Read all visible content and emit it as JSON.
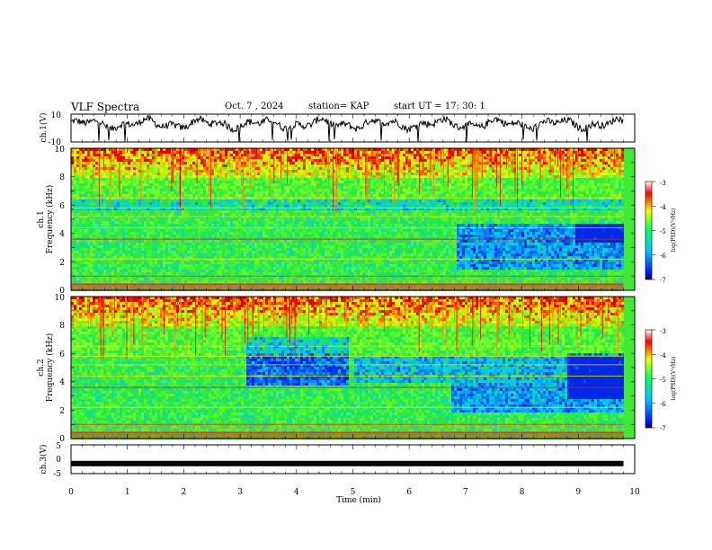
{
  "header": {
    "title": "VLF Spectra",
    "date": "Oct. 7 , 2024",
    "station": "station= KAP",
    "start": "start  UT =   17: 30: 1"
  },
  "chart_data": [
    {
      "type": "line",
      "id": "ch1-waveform",
      "ylabel": "ch.1(V)",
      "ylim": [
        -10,
        10
      ],
      "y_ticks": [
        "10",
        "-10"
      ],
      "xlim": [
        0,
        10
      ],
      "description_series": "waveform amplitude roughly between -4 and 6 V",
      "series_color": "#000000"
    },
    {
      "type": "heatmap",
      "id": "ch1-spectrogram",
      "ylabel_line1": "ch.1",
      "ylabel_line2": "Frequency (kHz)",
      "ylim": [
        0,
        10
      ],
      "y_ticks": [
        "0",
        "2",
        "4",
        "6",
        "8",
        "10"
      ],
      "xlim": [
        0,
        9.8
      ],
      "colorbar": {
        "label": "log(PSD)(V²/Hz)",
        "range": [
          -7,
          -3
        ],
        "ticks": [
          "-3",
          "-4",
          "-5",
          "-6",
          "-7"
        ]
      }
    },
    {
      "type": "heatmap",
      "id": "ch2-spectrogram",
      "ylabel_line1": "ch.2",
      "ylabel_line2": "Frequency (kHz)",
      "ylim": [
        0,
        10
      ],
      "y_ticks": [
        "0",
        "2",
        "4",
        "6",
        "8",
        "10"
      ],
      "xlim": [
        0,
        9.8
      ],
      "colorbar": {
        "label": "log(PSD)(V²/Hz)",
        "range": [
          -7,
          -3
        ],
        "ticks": [
          "-3",
          "-4",
          "-5",
          "-6",
          "-7"
        ]
      }
    },
    {
      "type": "line",
      "id": "ch3-signal",
      "ylabel": "ch.3(V)",
      "ylim": [
        -5,
        5
      ],
      "y_ticks": [
        "5",
        "0",
        "-5"
      ],
      "xlim": [
        0,
        10
      ],
      "x_ticks": [
        "0",
        "1",
        "2",
        "3",
        "4",
        "5",
        "6",
        "7",
        "8",
        "9",
        "10"
      ],
      "xlabel": "Time  (min)",
      "level": -1.5,
      "series_color": "#000000"
    }
  ]
}
